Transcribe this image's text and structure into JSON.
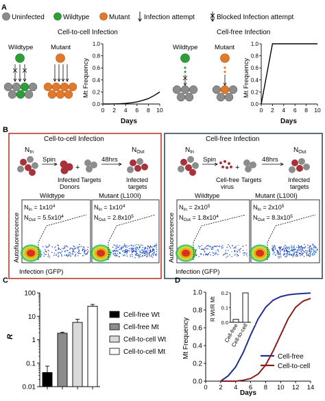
{
  "panel_letters": {
    "a": "A",
    "b": "B",
    "c": "C",
    "d": "D"
  },
  "legend_top": {
    "uninfected": "Uninfected",
    "wildtype": "Wildtype",
    "mutant": "Mutant",
    "infection_attempt": "Infection attempt",
    "blocked": "Blocked Infection attempt"
  },
  "panel_a": {
    "ctc_title": "Cell-to-cell Infection",
    "cf_title": "Cell-free Infection",
    "wildtype": "Wildtype",
    "mutant": "Mutant",
    "ylabel": "Mt Frequency",
    "xlabel": "Days",
    "yticks": [
      "0.0",
      "0.2",
      "0.4",
      "0.6",
      "0.8",
      "1.0"
    ],
    "xticks": [
      "0",
      "2",
      "4",
      "6",
      "8",
      "10"
    ]
  },
  "panel_b": {
    "ctc_title": "Cell-to-cell Infection",
    "cf_title": "Cell-free Infection",
    "n_in": "N",
    "n_in_sub": "In",
    "n_out": "N",
    "n_out_sub": "Out",
    "spin": "Spin",
    "hrs": "48hrs",
    "plus": "+",
    "infected_donors": [
      "Infected",
      "Donors"
    ],
    "targets": "Targets",
    "infected_targets": [
      "Infected",
      "targets"
    ],
    "cellfree_virus": [
      "Cell-free",
      "virus"
    ],
    "wildtype": "Wildtype",
    "mutant": "Mutant (L100I)",
    "ylabel": "Autofluorescence",
    "xlabel": "Infection (GFP)",
    "plots": [
      {
        "nin": "N",
        "nin_sub": "In",
        "nin_val": " = 1x10",
        "nin_exp": "4",
        "nout": "N",
        "nout_sub": "Out",
        "nout_val": " = 5.5x10",
        "nout_exp": "4"
      },
      {
        "nin": "N",
        "nin_sub": "In",
        "nin_val": " = 1x10",
        "nin_exp": "4",
        "nout": "N",
        "nout_sub": "Out",
        "nout_val": " = 2.8x10",
        "nout_exp": "5"
      },
      {
        "nin": "N",
        "nin_sub": "In",
        "nin_val": " = 2x10",
        "nin_exp": "5",
        "nout": "N",
        "nout_sub": "Out",
        "nout_val": " = 1.8x10",
        "nout_exp": "4"
      },
      {
        "nin": "N",
        "nin_sub": "In",
        "nin_val": " = 2x10",
        "nin_exp": "5",
        "nout": "N",
        "nout_sub": "Out",
        "nout_val": " = 8.3x10",
        "nout_exp": "5"
      }
    ]
  },
  "colors": {
    "wildtype": "#2e9e3a",
    "mutant": "#e07a2a",
    "uninfected": "#8c8c8c",
    "ctc_box": "#c0392b",
    "cf_box": "#34495e",
    "infected_red": "#a8323a",
    "cf_line": "#1f2f8f",
    "ctc_line": "#8b1a1a"
  },
  "chart_data": [
    {
      "type": "line",
      "panel": "A-left",
      "xlabel": "Days",
      "ylabel": "Mt Frequency",
      "xlim": [
        0,
        10
      ],
      "ylim": [
        0,
        1
      ],
      "x": [
        0,
        1,
        2,
        3,
        4,
        5,
        6,
        7,
        8,
        9,
        10
      ],
      "y": [
        0.0,
        0.0,
        0.002,
        0.005,
        0.01,
        0.02,
        0.035,
        0.06,
        0.09,
        0.14,
        0.2
      ]
    },
    {
      "type": "line",
      "panel": "A-right",
      "xlabel": "Days",
      "ylabel": "Mt Frequency",
      "xlim": [
        0,
        10
      ],
      "ylim": [
        0,
        1
      ],
      "x": [
        0,
        1,
        2,
        3,
        4,
        5,
        6,
        7,
        8,
        9,
        10
      ],
      "y": [
        0.0,
        0.5,
        1.0,
        1.0,
        1.0,
        1.0,
        1.0,
        1.0,
        1.0,
        1.0,
        1.0
      ]
    },
    {
      "type": "bar",
      "panel": "C",
      "ylabel": "R",
      "yscale": "log",
      "ylim": [
        0.01,
        100
      ],
      "yticks": [
        "0.01",
        "0.1",
        "1",
        "10",
        "100"
      ],
      "categories": [
        "Cell-free Wt",
        "Cell-free Mt",
        "Cell-to-cell Wt",
        "Cell-to-cell Mt"
      ],
      "values": [
        0.04,
        1.9,
        5.5,
        27
      ],
      "errors": [
        0.035,
        0.2,
        2.0,
        5.0
      ],
      "colors": [
        "#000000",
        "#8c8c8c",
        "#d9d9d9",
        "#ffffff"
      ]
    },
    {
      "type": "line",
      "panel": "D",
      "xlabel": "Days",
      "ylabel": "Mt Frequency",
      "xlim": [
        0,
        14
      ],
      "ylim": [
        0,
        1
      ],
      "xticks": [
        "0",
        "2",
        "4",
        "6",
        "8",
        "10",
        "12",
        "14"
      ],
      "yticks": [
        "0.0",
        "0.2",
        "0.4",
        "0.6",
        "0.8",
        "1.0"
      ],
      "series": [
        {
          "name": "Cell-free",
          "color": "#1f2f8f",
          "x": [
            2,
            3,
            4,
            5,
            6,
            7,
            8,
            9,
            10,
            11,
            12,
            13,
            14
          ],
          "y": [
            0.0,
            0.06,
            0.16,
            0.32,
            0.52,
            0.7,
            0.83,
            0.91,
            0.95,
            0.97,
            0.98,
            0.985,
            0.99
          ]
        },
        {
          "name": "Cell-to-cell",
          "color": "#8b1a1a",
          "x": [
            2,
            4,
            5,
            6,
            7,
            8,
            9,
            10,
            11,
            12,
            13,
            14
          ],
          "y": [
            0.0,
            0.0,
            0.01,
            0.03,
            0.08,
            0.18,
            0.34,
            0.52,
            0.7,
            0.83,
            0.9,
            0.93
          ]
        }
      ]
    },
    {
      "type": "bar",
      "panel": "D-inset",
      "ylabel": "R Wt/R Mt",
      "ylim": [
        0,
        0.2
      ],
      "yticks": [
        "0.0",
        "0.1",
        "0.2"
      ],
      "categories": [
        "Cell-free",
        "Cell-to-cell"
      ],
      "values": [
        0.02,
        0.2
      ]
    }
  ]
}
